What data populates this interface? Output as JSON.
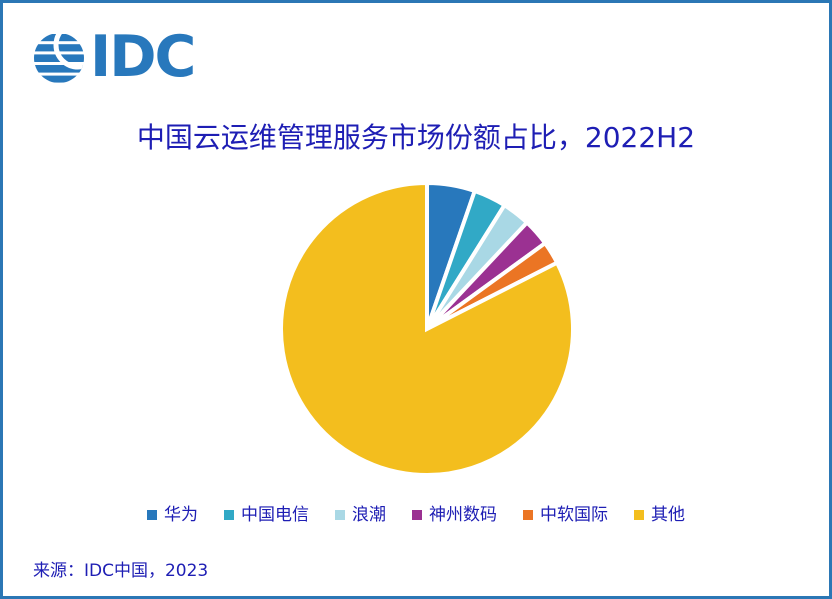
{
  "theme": {
    "border": "#2B77B5",
    "text": "#1E1EB4",
    "logo": "#2878BC",
    "background": "#FFFFFF"
  },
  "logo": {
    "text": "IDC",
    "icon": "idc-globe-icon"
  },
  "chart_data": {
    "type": "pie",
    "title": "中国云运维管理服务市场份额占比，2022H2",
    "unit": "percent",
    "start_angle_deg": 0,
    "direction": "clockwise",
    "legend_position": "bottom",
    "values_labeled_on_chart": false,
    "slices": [
      {
        "label": "华为",
        "value": 5.3,
        "color": "#2878BC"
      },
      {
        "label": "中国电信",
        "value": 3.6,
        "color": "#31A9C6"
      },
      {
        "label": "浪潮",
        "value": 3.1,
        "color": "#A9D8E5"
      },
      {
        "label": "神州数码",
        "value": 3.0,
        "color": "#9B3192"
      },
      {
        "label": "中软国际",
        "value": 2.5,
        "color": "#EB7524"
      },
      {
        "label": "其他",
        "value": 82.5,
        "color": "#F3BE1E"
      }
    ]
  },
  "source": {
    "text": "来源：IDC中国，2023"
  }
}
